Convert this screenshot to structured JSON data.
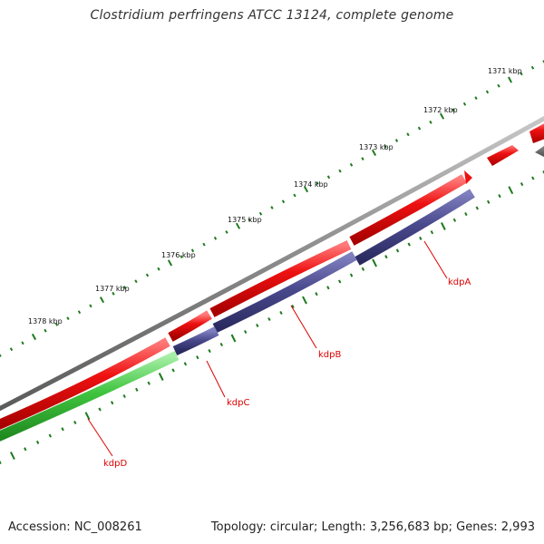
{
  "title": "Clostridium perfringens ATCC 13124, complete genome",
  "footer": {
    "accession": "Accession: NC_008261",
    "summary": "Topology: circular; Length: 3,256,683 bp; Genes: 2,993"
  },
  "ruler": {
    "labels": [
      "1371 kbp",
      "1372 kbp",
      "1373 kbp",
      "1374 kbp",
      "1375 kbp",
      "1376 kbp",
      "1377 kbp",
      "1378 kbp"
    ]
  },
  "genes": [
    {
      "name": "kdpA"
    },
    {
      "name": "kdpB"
    },
    {
      "name": "kdpC"
    },
    {
      "name": "kdpD"
    }
  ],
  "colors": {
    "backbone": "#8a8a8a",
    "cds_red": "#ee1111",
    "kdp_blue": "#4a4a8e",
    "kdp_green": "#3fc43f",
    "tick_green": "#1e7a1e",
    "label_red": "#dd0000"
  }
}
